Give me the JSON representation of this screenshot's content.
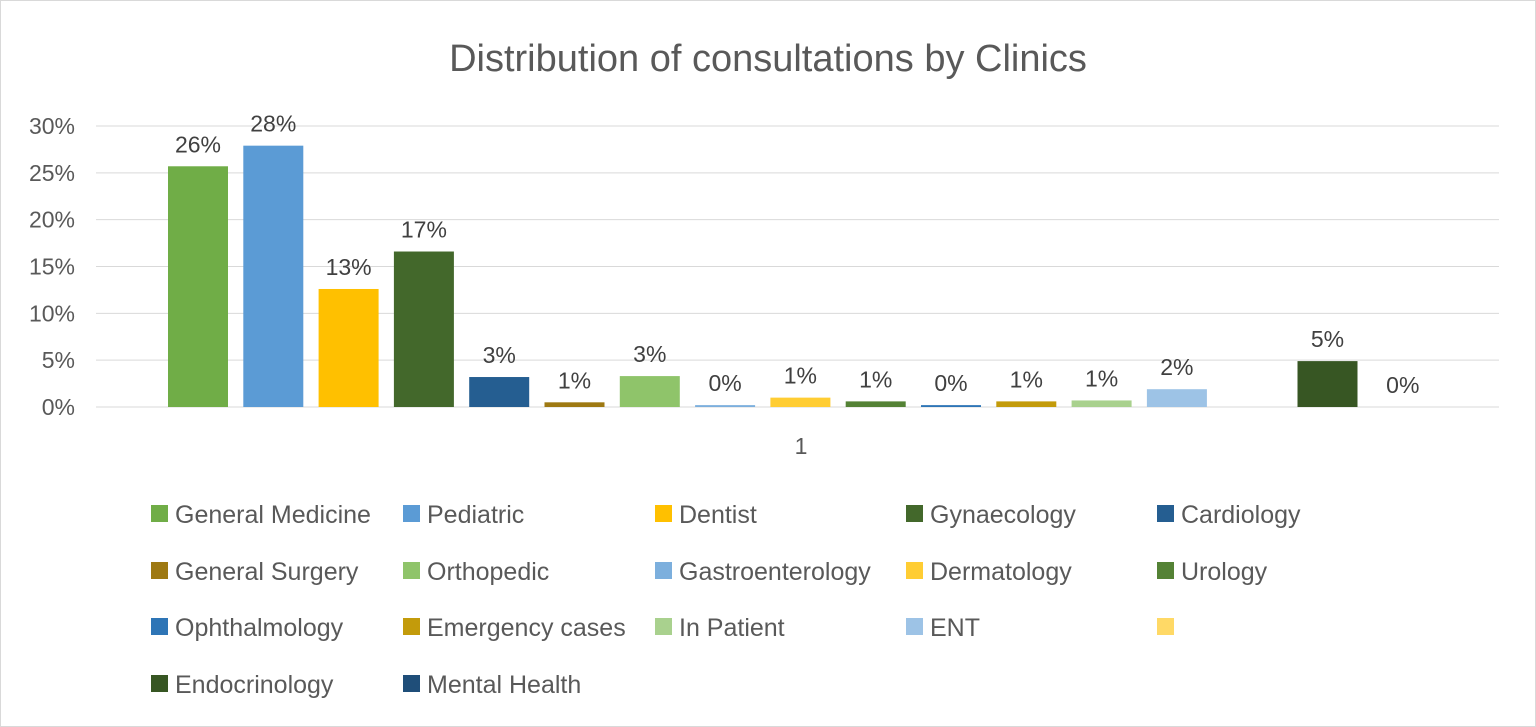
{
  "chart_data": {
    "type": "bar",
    "title": "Distribution of consultations by Clinics",
    "categories": [
      "1"
    ],
    "ylim": [
      0,
      30
    ],
    "yticks": [
      "0%",
      "5%",
      "10%",
      "15%",
      "20%",
      "25%",
      "30%"
    ],
    "y_tick_values": [
      0,
      5,
      10,
      15,
      20,
      25,
      30
    ],
    "grid": true,
    "legend_position": "bottom",
    "series": [
      {
        "name": "General Medicine",
        "value": 25.7,
        "label": "26%",
        "color": "#70ad47"
      },
      {
        "name": "Pediatric",
        "value": 27.9,
        "label": "28%",
        "color": "#5b9bd5"
      },
      {
        "name": "Dentist",
        "value": 12.6,
        "label": "13%",
        "color": "#ffc000"
      },
      {
        "name": "Gynaecology",
        "value": 16.6,
        "label": "17%",
        "color": "#43682b"
      },
      {
        "name": "Cardiology",
        "value": 3.2,
        "label": "3%",
        "color": "#255e91"
      },
      {
        "name": "General Surgery",
        "value": 0.5,
        "label": "1%",
        "color": "#9e7912"
      },
      {
        "name": "Orthopedic",
        "value": 3.3,
        "label": "3%",
        "color": "#8fc46a"
      },
      {
        "name": "Gastroenterology",
        "value": 0.2,
        "label": "0%",
        "color": "#7cafdd"
      },
      {
        "name": "Dermatology",
        "value": 1.0,
        "label": "1%",
        "color": "#ffcd33"
      },
      {
        "name": "Urology",
        "value": 0.6,
        "label": "1%",
        "color": "#548235"
      },
      {
        "name": "Ophthalmology",
        "value": 0.2,
        "label": "0%",
        "color": "#2e75b6"
      },
      {
        "name": "Emergency cases",
        "value": 0.6,
        "label": "1%",
        "color": "#c39b0b"
      },
      {
        "name": "In Patient",
        "value": 0.7,
        "label": "1%",
        "color": "#a9d18e"
      },
      {
        "name": "ENT",
        "value": 1.9,
        "label": "2%",
        "color": "#9dc3e6"
      },
      {
        "name": "",
        "value": null,
        "label": "",
        "color": "#ffd966"
      },
      {
        "name": "Endocrinology",
        "value": 4.9,
        "label": "5%",
        "color": "#375623"
      },
      {
        "name": "Mental Health",
        "value": 0.0,
        "label": "0%",
        "color": "#1f4e79"
      }
    ]
  }
}
